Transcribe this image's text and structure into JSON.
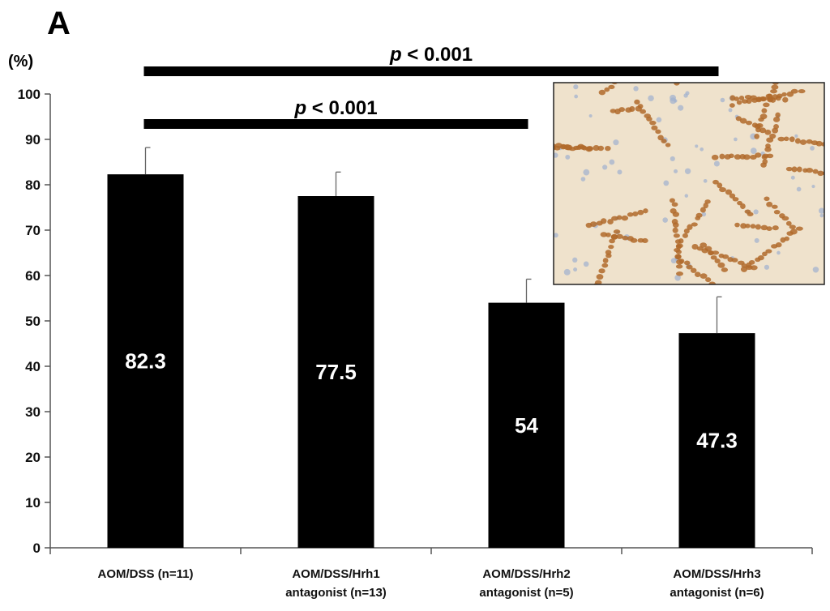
{
  "panel_label": "A",
  "chart_data": {
    "type": "bar",
    "ylabel": "(%)",
    "ylim": [
      0,
      100
    ],
    "yticks": [
      0,
      10,
      20,
      30,
      40,
      50,
      60,
      70,
      80,
      90,
      100
    ],
    "grid": false,
    "legend": "none",
    "bar_color": "#000000",
    "categories": [
      [
        "AOM/DSS (n=11)"
      ],
      [
        "AOM/DSS/Hrh1",
        "antagonist (n=13)"
      ],
      [
        "AOM/DSS/Hrh2",
        "antagonist (n=5)"
      ],
      [
        "AOM/DSS/Hrh3",
        "antagonist (n=6)"
      ]
    ],
    "values": [
      82.3,
      77.5,
      54,
      47.3
    ],
    "value_labels": [
      "82.3",
      "77.5",
      "54",
      "47.3"
    ],
    "error_upper": [
      88.2,
      82.8,
      59.2,
      55.3
    ],
    "significance": [
      {
        "from": 0,
        "to": 3,
        "p_symbol": "p",
        "text": " < 0.001"
      },
      {
        "from": 0,
        "to": 2,
        "p_symbol": "p",
        "text": " < 0.001"
      }
    ]
  },
  "inset_image": {
    "description_icon": "immunohistochemistry-micrograph",
    "background_color": "#efe2cc",
    "nucleus_color": "#b06a2a",
    "counterstain_color": "#9fb0cf"
  }
}
